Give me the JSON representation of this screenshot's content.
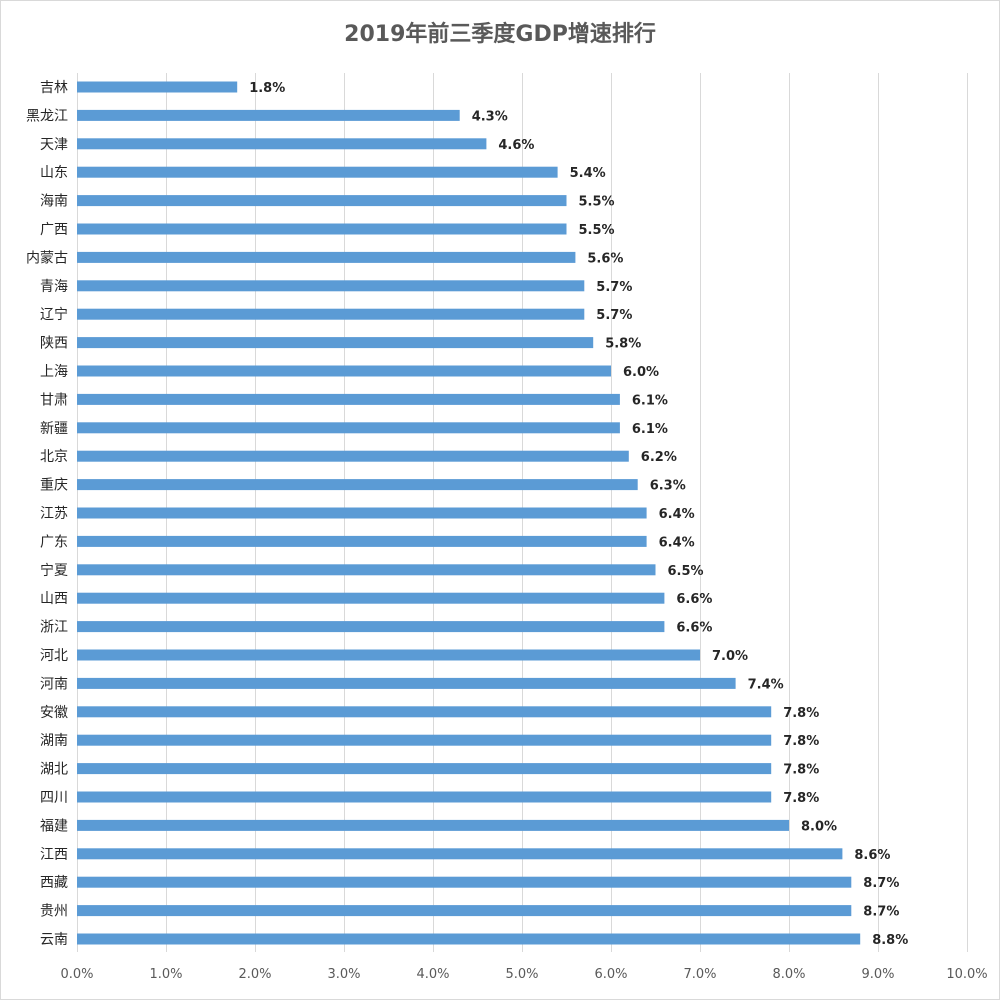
{
  "chart_data": {
    "type": "bar",
    "orientation": "horizontal",
    "title": "2019年前三季度GDP增速排行",
    "categories": [
      "吉林",
      "黑龙江",
      "天津",
      "山东",
      "海南",
      "广西",
      "内蒙古",
      "青海",
      "辽宁",
      "陕西",
      "上海",
      "甘肃",
      "新疆",
      "北京",
      "重庆",
      "江苏",
      "广东",
      "宁夏",
      "山西",
      "浙江",
      "河北",
      "河南",
      "安徽",
      "湖南",
      "湖北",
      "四川",
      "福建",
      "江西",
      "西藏",
      "贵州",
      "云南"
    ],
    "values": [
      1.8,
      4.3,
      4.6,
      5.4,
      5.5,
      5.5,
      5.6,
      5.7,
      5.7,
      5.8,
      6.0,
      6.1,
      6.1,
      6.2,
      6.3,
      6.4,
      6.4,
      6.5,
      6.6,
      6.6,
      7.0,
      7.4,
      7.8,
      7.8,
      7.8,
      7.8,
      8.0,
      8.6,
      8.7,
      8.7,
      8.8
    ],
    "value_labels": [
      "1.8%",
      "4.3%",
      "4.6%",
      "5.4%",
      "5.5%",
      "5.5%",
      "5.6%",
      "5.7%",
      "5.7%",
      "5.8%",
      "6.0%",
      "6.1%",
      "6.1%",
      "6.2%",
      "6.3%",
      "6.4%",
      "6.4%",
      "6.5%",
      "6.6%",
      "6.6%",
      "7.0%",
      "7.4%",
      "7.8%",
      "7.8%",
      "7.8%",
      "7.8%",
      "8.0%",
      "8.6%",
      "8.7%",
      "8.7%",
      "8.8%"
    ],
    "x_ticks": [
      0,
      1,
      2,
      3,
      4,
      5,
      6,
      7,
      8,
      9,
      10
    ],
    "x_tick_labels": [
      "0.0%",
      "1.0%",
      "2.0%",
      "3.0%",
      "4.0%",
      "5.0%",
      "6.0%",
      "7.0%",
      "8.0%",
      "9.0%",
      "10.0%"
    ],
    "xlim": [
      0,
      10
    ],
    "xlabel": "",
    "ylabel": "",
    "grid": true,
    "legend": "none",
    "bar_color": "#5b9bd5"
  }
}
